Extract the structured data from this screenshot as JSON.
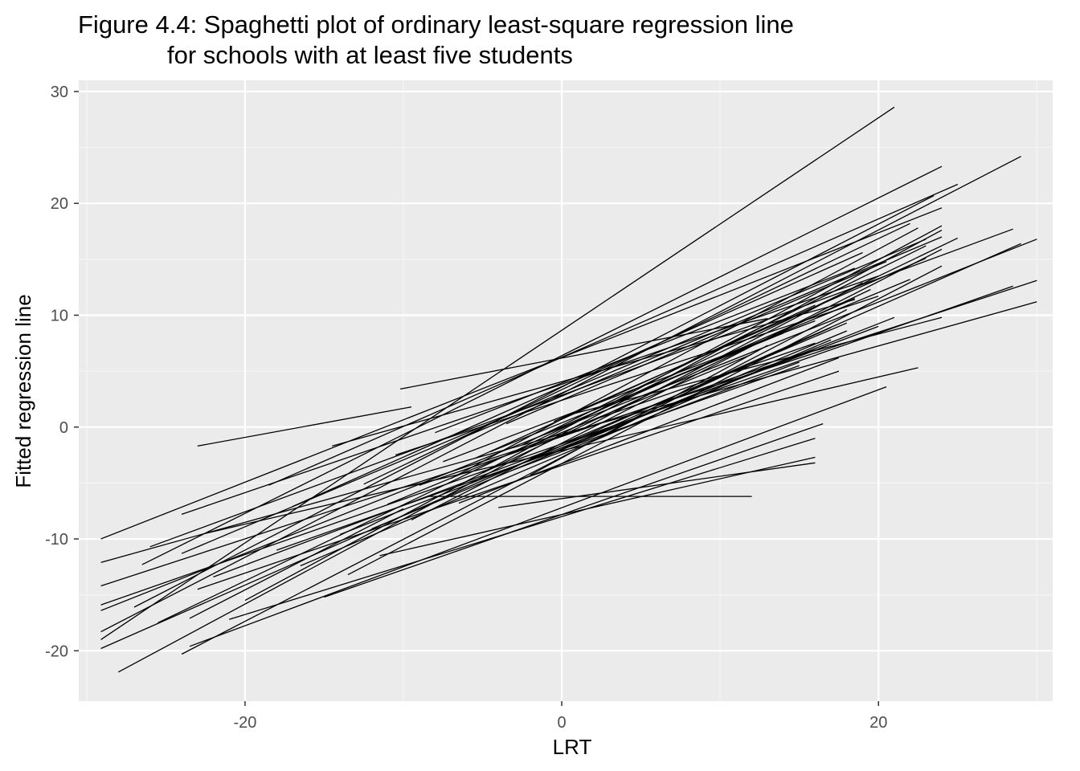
{
  "chart_data": {
    "type": "line",
    "title_lines": [
      "Figure 4.4: Spaghetti plot of ordinary least-square regression line",
      "for schools with at least five students"
    ],
    "xlabel": "LRT",
    "ylabel": "Fitted regression line",
    "xlim": [
      -30.5,
      31
    ],
    "ylim": [
      -24.5,
      31
    ],
    "x_ticks": [
      -20,
      0,
      20
    ],
    "x_tick_labels": [
      "-20",
      "0",
      "20"
    ],
    "y_ticks": [
      -20,
      -10,
      0,
      10,
      20,
      30
    ],
    "y_tick_labels": [
      "-20",
      "-10",
      "0",
      "10",
      "20",
      "30"
    ],
    "grid": true,
    "legend": "none",
    "panel_color": "#ebebeb",
    "line_color": "#000000",
    "series": [
      {
        "x": [
          -29.1,
          21.0
        ],
        "y": [
          -19.0,
          28.6
        ]
      },
      {
        "x": [
          -29.1,
          29.0
        ],
        "y": [
          -18.3,
          24.2
        ]
      },
      {
        "x": [
          -29.1,
          30.0
        ],
        "y": [
          -16.4,
          16.8
        ]
      },
      {
        "x": [
          -29.1,
          30.0
        ],
        "y": [
          -14.2,
          13.1
        ]
      },
      {
        "x": [
          -29.1,
          30.0
        ],
        "y": [
          -12.1,
          11.2
        ]
      },
      {
        "x": [
          -29.1,
          24.0
        ],
        "y": [
          -10.0,
          19.6
        ]
      },
      {
        "x": [
          -29.1,
          29.0
        ],
        "y": [
          -19.8,
          16.4
        ]
      },
      {
        "x": [
          -29.1,
          28.5
        ],
        "y": [
          -15.9,
          12.6
        ]
      },
      {
        "x": [
          -28.0,
          24.0
        ],
        "y": [
          -21.9,
          17.6
        ]
      },
      {
        "x": [
          -27.0,
          23.5
        ],
        "y": [
          -16.1,
          20.7
        ]
      },
      {
        "x": [
          -26.5,
          24.0
        ],
        "y": [
          -12.3,
          23.3
        ]
      },
      {
        "x": [
          -26.0,
          28.5
        ],
        "y": [
          -10.7,
          17.7
        ]
      },
      {
        "x": [
          -25.5,
          25.0
        ],
        "y": [
          -17.5,
          16.9
        ]
      },
      {
        "x": [
          -24.0,
          18.0
        ],
        "y": [
          -20.3,
          10.5
        ]
      },
      {
        "x": [
          -24.0,
          20.0
        ],
        "y": [
          -7.8,
          13.5
        ]
      },
      {
        "x": [
          -24.0,
          23.0
        ],
        "y": [
          -11.3,
          16.8
        ]
      },
      {
        "x": [
          -23.5,
          20.5
        ],
        "y": [
          -19.6,
          3.6
        ]
      },
      {
        "x": [
          -23.5,
          -10.0
        ],
        "y": [
          -17.1,
          -7.3
        ]
      },
      {
        "x": [
          -23.0,
          -9.5
        ],
        "y": [
          -1.7,
          1.8
        ]
      },
      {
        "x": [
          -23.0,
          17.5
        ],
        "y": [
          -14.5,
          5.0
        ]
      },
      {
        "x": [
          -22.5,
          22.5
        ],
        "y": [
          -9.5,
          5.3
        ]
      },
      {
        "x": [
          -22.0,
          20.0
        ],
        "y": [
          -13.4,
          9.0
        ]
      },
      {
        "x": [
          -21.0,
          16.0
        ],
        "y": [
          -17.2,
          -1.0
        ]
      },
      {
        "x": [
          -20.0,
          24.0
        ],
        "y": [
          -15.5,
          18.0
        ]
      },
      {
        "x": [
          -18.5,
          25.0
        ],
        "y": [
          -5.2,
          21.7
        ]
      },
      {
        "x": [
          -18.0,
          15.0
        ],
        "y": [
          -11.0,
          5.5
        ]
      },
      {
        "x": [
          -17.0,
          19.0
        ],
        "y": [
          -7.1,
          15.6
        ]
      },
      {
        "x": [
          -16.5,
          17.0
        ],
        "y": [
          -12.4,
          7.8
        ]
      },
      {
        "x": [
          -15.0,
          16.5
        ],
        "y": [
          -15.2,
          0.3
        ]
      },
      {
        "x": [
          -14.5,
          18.5
        ],
        "y": [
          -1.7,
          11.4
        ]
      },
      {
        "x": [
          -14.0,
          21.0
        ],
        "y": [
          -9.6,
          9.8
        ]
      },
      {
        "x": [
          -13.5,
          24.0
        ],
        "y": [
          -13.2,
          14.4
        ]
      },
      {
        "x": [
          -12.5,
          22.0
        ],
        "y": [
          -5.1,
          18.2
        ]
      },
      {
        "x": [
          -12.0,
          18.0
        ],
        "y": [
          -9.1,
          8.6
        ]
      },
      {
        "x": [
          -11.5,
          16.0
        ],
        "y": [
          -11.5,
          -2.7
        ]
      },
      {
        "x": [
          -11.0,
          12.0
        ],
        "y": [
          -6.9,
          6.5
        ]
      },
      {
        "x": [
          -10.5,
          20.0
        ],
        "y": [
          -2.5,
          11.7
        ]
      },
      {
        "x": [
          -10.2,
          13.0
        ],
        "y": [
          3.4,
          9.7
        ]
      },
      {
        "x": [
          -9.5,
          24.0
        ],
        "y": [
          -8.3,
          15.9
        ]
      },
      {
        "x": [
          -9.0,
          16.0
        ],
        "y": [
          -5.2,
          6.9
        ]
      },
      {
        "x": [
          -8.5,
          12.0
        ],
        "y": [
          -6.2,
          -6.2
        ]
      },
      {
        "x": [
          -8.0,
          18.5
        ],
        "y": [
          -0.5,
          14.2
        ]
      },
      {
        "x": [
          -7.5,
          16.0
        ],
        "y": [
          -3.1,
          9.5
        ]
      },
      {
        "x": [
          -7.0,
          22.5
        ],
        "y": [
          -4.6,
          17.8
        ]
      },
      {
        "x": [
          -6.5,
          17.5
        ],
        "y": [
          -6.8,
          6.2
        ]
      },
      {
        "x": [
          -6.0,
          24.0
        ],
        "y": [
          -0.8,
          17.0
        ]
      },
      {
        "x": [
          -5.5,
          16.0
        ],
        "y": [
          -2.8,
          10.9
        ]
      },
      {
        "x": [
          -5.0,
          19.5
        ],
        "y": [
          -4.1,
          12.3
        ]
      },
      {
        "x": [
          -4.5,
          14.0
        ],
        "y": [
          -2.2,
          8.4
        ]
      },
      {
        "x": [
          -4.0,
          16.0
        ],
        "y": [
          -7.2,
          -3.2
        ]
      },
      {
        "x": [
          -3.5,
          20.5
        ],
        "y": [
          0.3,
          14.8
        ]
      },
      {
        "x": [
          -3.0,
          15.0
        ],
        "y": [
          -3.8,
          5.8
        ]
      },
      {
        "x": [
          -2.5,
          23.0
        ],
        "y": [
          -1.6,
          16.2
        ]
      },
      {
        "x": [
          -2.0,
          13.0
        ],
        "y": [
          -4.3,
          7.3
        ]
      },
      {
        "x": [
          -1.5,
          18.5
        ],
        "y": [
          -0.9,
          11.5
        ]
      },
      {
        "x": [
          -1.0,
          17.0
        ],
        "y": [
          -2.6,
          8.9
        ]
      },
      {
        "x": [
          -0.5,
          23.0
        ],
        "y": [
          0.5,
          15.1
        ]
      },
      {
        "x": [
          0.0,
          18.0
        ],
        "y": [
          -1.5,
          9.3
        ]
      },
      {
        "x": [
          0.5,
          24.0
        ],
        "y": [
          1.1,
          9.8
        ]
      },
      {
        "x": [
          1.0,
          19.0
        ],
        "y": [
          -0.4,
          12.9
        ]
      },
      {
        "x": [
          1.5,
          16.0
        ],
        "y": [
          0.4,
          7.5
        ]
      },
      {
        "x": [
          2.0,
          22.0
        ],
        "y": [
          1.5,
          13.2
        ]
      }
    ]
  }
}
